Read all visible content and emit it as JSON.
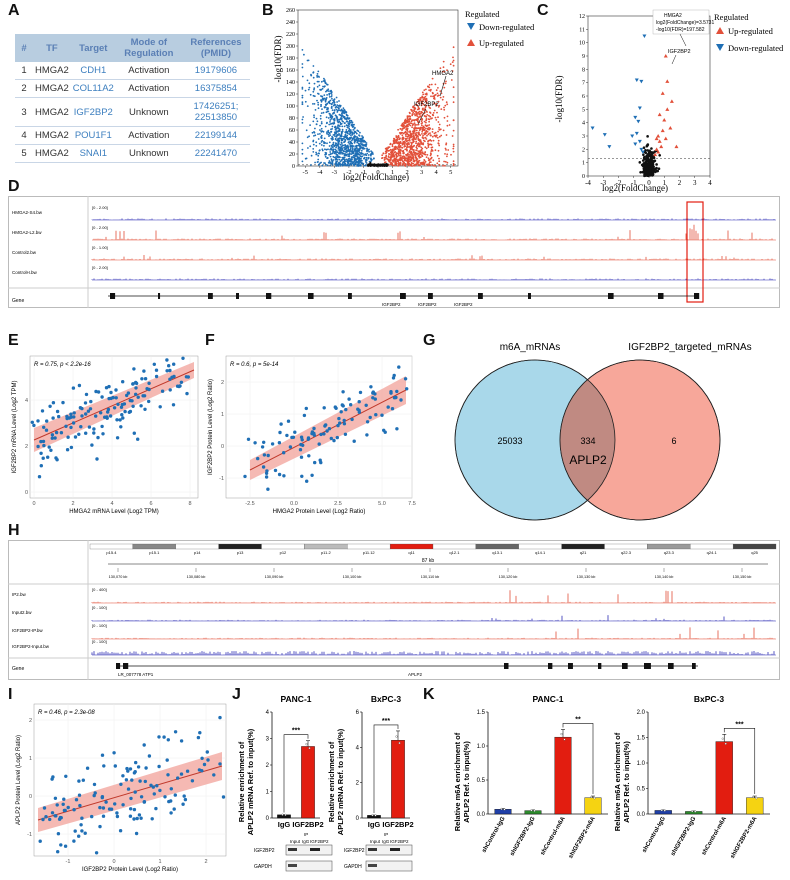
{
  "labels": {
    "A": "A",
    "B": "B",
    "C": "C",
    "D": "D",
    "E": "E",
    "F": "F",
    "G": "G",
    "H": "H",
    "I": "I",
    "J": "J",
    "K": "K"
  },
  "table": {
    "headers": [
      "#",
      "TF",
      "Target",
      "Mode of Regulation",
      "References (PMID)"
    ],
    "rows": [
      {
        "n": "1",
        "tf": "HMGA2",
        "target": "CDH1",
        "mode": "Activation",
        "ref": "19179606"
      },
      {
        "n": "2",
        "tf": "HMGA2",
        "target": "COL11A2",
        "mode": "Activation",
        "ref": "16375854"
      },
      {
        "n": "3",
        "tf": "HMGA2",
        "target": "IGF2BP2",
        "mode": "Unknown",
        "ref": "17426251; 22513850"
      },
      {
        "n": "4",
        "tf": "HMGA2",
        "target": "POU1F1",
        "mode": "Activation",
        "ref": "22199144"
      },
      {
        "n": "5",
        "tf": "HMGA2",
        "target": "SNAI1",
        "mode": "Unknown",
        "ref": "22241470"
      }
    ]
  },
  "volcanoB": {
    "ylabel": "-log10(FDR)",
    "xlabel": "log2(FoldChange)",
    "legend_title": "Regulated",
    "down": "Down-regulated",
    "up": "Up-regulated",
    "ann1": "HMGA2",
    "ann2": "IGF2BP2",
    "chart_data": {
      "type": "scatter",
      "title": "",
      "xlim": [
        -5.5,
        5.5
      ],
      "ylim": [
        0,
        260
      ],
      "xticks": [
        "-5",
        "-4",
        "-3",
        "-2",
        "-1",
        "0",
        "1",
        "2",
        "3",
        "4",
        "5"
      ],
      "yticks": [
        "0",
        "20",
        "40",
        "60",
        "80",
        "100",
        "120",
        "140",
        "160",
        "180",
        "200",
        "220",
        "240",
        "260"
      ]
    }
  },
  "volcanoC": {
    "ylabel": "-log10(FDR)",
    "xlabel": "log2(FoldChange)",
    "legend_title": "Regulated",
    "up": "Up-regulated",
    "down": "Down-regulated",
    "box_l1": "HMGA2",
    "box_l2": "log2(FoldChange)=3.5731",
    "box_l3": "-log10(FDR)=197.582",
    "ann": "IGF2BP2",
    "chart_data": {
      "type": "scatter",
      "xlim": [
        -4,
        4
      ],
      "ylim": [
        0,
        12
      ],
      "xticks": [
        "-4",
        "-3",
        "-2",
        "-1",
        "0",
        "1",
        "2",
        "3",
        "4"
      ],
      "yticks": [
        "0",
        "1",
        "2",
        "3",
        "4",
        "5",
        "6",
        "7",
        "8",
        "9",
        "10",
        "11",
        "12"
      ]
    }
  },
  "tracksD": {
    "tracks": [
      "HMGA2-S4.bw",
      "HMGA2-L2.bw",
      "Control2.bw",
      "ControlH.bw"
    ],
    "ranges": [
      "[0 - 2.00]",
      "[0 - 2.00]",
      "[0 - 1.00]",
      "[0 - 2.00]"
    ],
    "gene_label": "Gene",
    "genes": [
      "IGF2BP2",
      "IGF2BP2",
      "IGF2BP2"
    ]
  },
  "scatterE": {
    "stat": "R = 0.75, p < 2.2e-16",
    "xlabel": "HMGA2 mRNA Level (Log2 TPM)",
    "ylabel": "IGF2BP2 mRNA Level (Log2 TPM)",
    "xticks": [
      "0",
      "2",
      "4",
      "6",
      "8"
    ],
    "yticks": [
      "0",
      "2",
      "4"
    ]
  },
  "scatterF": {
    "stat": "R = 0.6, p = 5e-14",
    "xlabel": "HMGA2 Protein Level (Log2 Ratio)",
    "ylabel": "IGF2BP2 Protein Level (Log2 Ratio)",
    "xticks": [
      "-2.5",
      "0.0",
      "2.5",
      "5.0",
      "7.5"
    ],
    "yticks": [
      "-1",
      "0",
      "1",
      "2"
    ]
  },
  "venn": {
    "left_title": "m6A_mRNAs",
    "right_title": "IGF2BP2_targeted_mRNAs",
    "left": "25033",
    "both": "334",
    "right": "6",
    "gene": "APLP2",
    "colors": {
      "left": "#a9d8ea",
      "right": "#f7a79a",
      "overlap": "#c08a82"
    }
  },
  "tracksH": {
    "bands": [
      "p15.4",
      "p15.1",
      "p14",
      "p13",
      "p12",
      "p11.2",
      "p11.12",
      "q11",
      "q12.1",
      "q13.1",
      "q14.1",
      "q21",
      "q22.3",
      "q23.3",
      "q24.1",
      "q25"
    ],
    "scale": "87 kb",
    "coords": [
      "130,070 kb",
      "130,080 kb",
      "130,090 kb",
      "130,100 kb",
      "130,110 kb",
      "130,120 kb",
      "130,130 kb",
      "130,140 kb",
      "130,150 kb"
    ],
    "tracks": [
      "IP2.bw",
      "Input2.bw",
      "IGF2BP2-IP.bw",
      "IGF2BP2-Input.bw"
    ],
    "ranges": [
      "[0 - 400]",
      "[0 - 100]",
      "[0 - 100]",
      "[0 - 100]"
    ],
    "gene_label": "Gene",
    "genes": [
      "LR_007778 ATP1",
      "APLP2"
    ]
  },
  "scatterI": {
    "stat": "R = 0.46, p = 2.3e-08",
    "xlabel": "IGF2BP2 Protein Level (Log2 Ratio)",
    "ylabel": "APLP2 Protein Level (Log2 Ratio)",
    "xticks": [
      "-1",
      "0",
      "1",
      "2"
    ],
    "yticks": [
      "-1",
      "0",
      "1",
      "2"
    ]
  },
  "barJ": {
    "ylabel_l1": "Relative enrichment of",
    "ylabel_l2": "APLP2 mRNA Ref. to input(%)",
    "panels": [
      {
        "title": "PANC-1",
        "sig": "***",
        "yticks": [
          "0",
          "1",
          "2",
          "3",
          "4"
        ],
        "chart_data": {
          "type": "bar",
          "categories": [
            "IgG",
            "IGF2BP2"
          ],
          "values": [
            0.12,
            2.7
          ],
          "ylim": [
            0,
            4
          ]
        }
      },
      {
        "title": "BxPC-3",
        "sig": "***",
        "yticks": [
          "0",
          "2",
          "4",
          "6"
        ],
        "chart_data": {
          "type": "bar",
          "categories": [
            "IgG",
            "IGF2BP2"
          ],
          "values": [
            0.15,
            4.4
          ],
          "ylim": [
            0,
            6
          ]
        }
      }
    ],
    "blot": {
      "ip": "IP",
      "cols": [
        "Input",
        "IgG",
        "IGF2BP2"
      ],
      "rows": [
        "IGF2BP2",
        "GAPDH"
      ]
    }
  },
  "barK": {
    "ylabel_l1": "Relative m6A enrichment of",
    "ylabel_l2": "APLP2 Ref. to input(%)",
    "categories": [
      "shControl-IgG",
      "shIGF2BP2-IgG",
      "shControl-m6A",
      "shIGF2BP2-m6A"
    ],
    "colors": [
      "#1f3fa8",
      "#2c8a2c",
      "#e21d10",
      "#f5d312"
    ],
    "panels": [
      {
        "title": "PANC-1",
        "sig": "**",
        "yticks": [
          "0.0",
          "0.5",
          "1.0",
          "1.5"
        ],
        "chart_data": {
          "type": "bar",
          "categories": [
            "shControl-IgG",
            "shIGF2BP2-IgG",
            "shControl-m6A",
            "shIGF2BP2-m6A"
          ],
          "values": [
            0.07,
            0.05,
            1.13,
            0.24
          ],
          "ylim": [
            0,
            1.5
          ]
        }
      },
      {
        "title": "BxPC-3",
        "sig": "***",
        "yticks": [
          "0.0",
          "0.5",
          "1.0",
          "1.5",
          "2.0"
        ],
        "chart_data": {
          "type": "bar",
          "categories": [
            "shControl-IgG",
            "shIGF2BP2-IgG",
            "shControl-m6A",
            "shIGF2BP2-m6A"
          ],
          "values": [
            0.07,
            0.05,
            1.42,
            0.32
          ],
          "ylim": [
            0,
            2
          ]
        }
      }
    ]
  }
}
